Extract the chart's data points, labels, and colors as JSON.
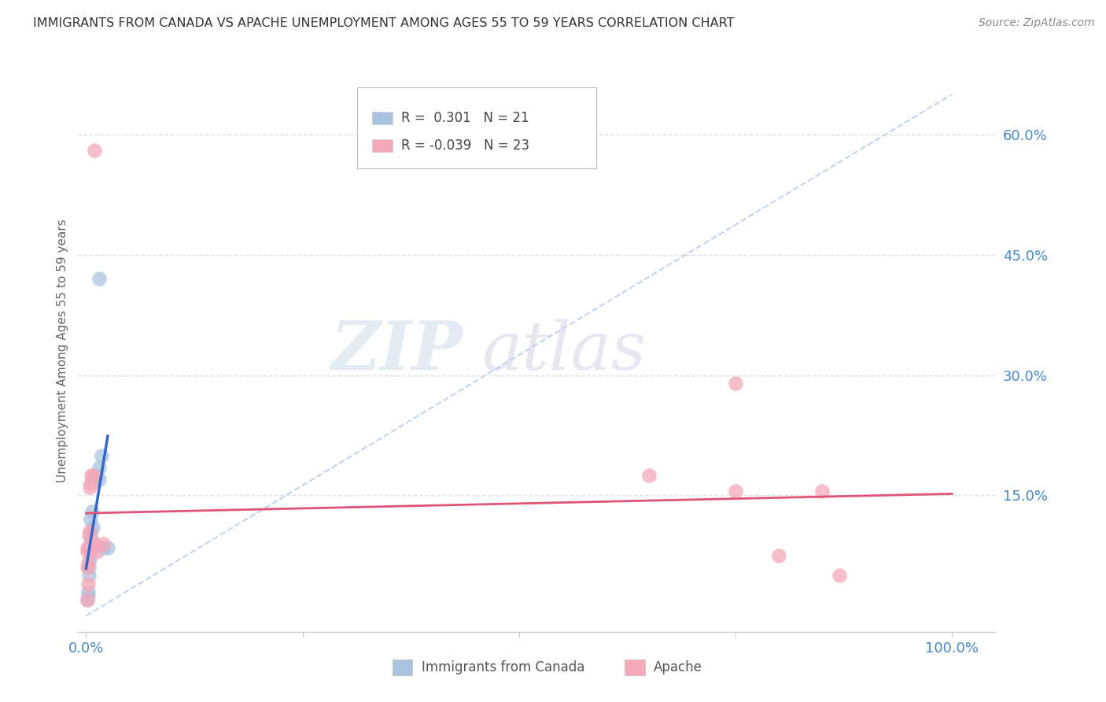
{
  "title": "IMMIGRANTS FROM CANADA VS APACHE UNEMPLOYMENT AMONG AGES 55 TO 59 YEARS CORRELATION CHART",
  "source": "Source: ZipAtlas.com",
  "ylabel": "Unemployment Among Ages 55 to 59 years",
  "ytick_labels": [
    "15.0%",
    "30.0%",
    "45.0%",
    "60.0%"
  ],
  "ytick_values": [
    0.15,
    0.3,
    0.45,
    0.6
  ],
  "xtick_labels": [
    "0.0%",
    "",
    "",
    "",
    "100.0%"
  ],
  "xtick_values": [
    0.0,
    0.25,
    0.5,
    0.75,
    1.0
  ],
  "xlim": [
    -0.01,
    1.05
  ],
  "ylim": [
    -0.02,
    0.68
  ],
  "watermark_zip": "ZIP",
  "watermark_atlas": "atlas",
  "legend_blue_R": "0.301",
  "legend_blue_N": "21",
  "legend_pink_R": "-0.039",
  "legend_pink_N": "23",
  "blue_color": "#aac4e0",
  "pink_color": "#f5a8b8",
  "blue_line_color": "#3366cc",
  "pink_line_color": "#e05575",
  "title_color": "#333333",
  "source_color": "#888888",
  "axis_label_color": "#4488cc",
  "ylabel_color": "#666666",
  "grid_color": "#e0e0e0",
  "dashed_line_color": "#c0d4ec",
  "blue_scatter": [
    [
      0.001,
      0.02
    ],
    [
      0.002,
      0.025
    ],
    [
      0.002,
      0.03
    ],
    [
      0.003,
      0.05
    ],
    [
      0.003,
      0.06
    ],
    [
      0.004,
      0.07
    ],
    [
      0.004,
      0.085
    ],
    [
      0.005,
      0.1
    ],
    [
      0.005,
      0.12
    ],
    [
      0.006,
      0.08
    ],
    [
      0.006,
      0.095
    ],
    [
      0.007,
      0.13
    ],
    [
      0.008,
      0.11
    ],
    [
      0.01,
      0.17
    ],
    [
      0.012,
      0.175
    ],
    [
      0.015,
      0.17
    ],
    [
      0.015,
      0.185
    ],
    [
      0.018,
      0.2
    ],
    [
      0.02,
      0.085
    ],
    [
      0.025,
      0.085
    ],
    [
      0.015,
      0.42
    ]
  ],
  "pink_scatter": [
    [
      0.001,
      0.02
    ],
    [
      0.001,
      0.06
    ],
    [
      0.001,
      0.08
    ],
    [
      0.002,
      0.04
    ],
    [
      0.002,
      0.065
    ],
    [
      0.003,
      0.085
    ],
    [
      0.003,
      0.1
    ],
    [
      0.004,
      0.105
    ],
    [
      0.004,
      0.16
    ],
    [
      0.005,
      0.165
    ],
    [
      0.006,
      0.175
    ],
    [
      0.008,
      0.175
    ],
    [
      0.01,
      0.09
    ],
    [
      0.012,
      0.08
    ],
    [
      0.02,
      0.09
    ],
    [
      0.01,
      0.58
    ],
    [
      0.65,
      0.175
    ],
    [
      0.75,
      0.155
    ],
    [
      0.85,
      0.155
    ],
    [
      0.8,
      0.075
    ],
    [
      0.87,
      0.05
    ],
    [
      0.75,
      0.29
    ],
    [
      0.001,
      0.085
    ]
  ]
}
